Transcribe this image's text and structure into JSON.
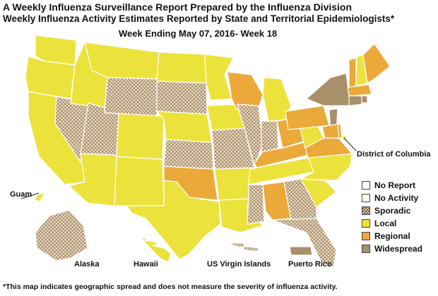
{
  "titles": {
    "line1": "A Weekly Influenza Surveillance Report Prepared by the Influenza Division",
    "line2": "Weekly Influenza Activity Estimates Reported by State and Territorial Epidemiologists*",
    "week": "Week Ending May 07, 2016- Week 18"
  },
  "labels": {
    "dc": "District of Columbia",
    "guam": "Guam",
    "alaska": "Alaska",
    "hawaii": "Hawaii",
    "usvi": "US Virgin Islands",
    "pr": "Puerto Rico"
  },
  "legend": [
    {
      "level": "no_report",
      "label": "No Report"
    },
    {
      "level": "no_activity",
      "label": "No Activity"
    },
    {
      "level": "sporadic",
      "label": "Sporadic"
    },
    {
      "level": "local",
      "label": "Local"
    },
    {
      "level": "regional",
      "label": "Regional"
    },
    {
      "level": "widespread",
      "label": "Widespread"
    }
  ],
  "colors": {
    "no_report": "#ffffff",
    "no_activity": "#fdfde8",
    "sporadic": "#ecdcc0",
    "local": "#ece23c",
    "regional": "#eba93a",
    "widespread": "#a8906a",
    "border": "#ffffff"
  },
  "activity": {
    "widespread": [
      "NY",
      "NJ",
      "CT",
      "RI",
      "PR"
    ],
    "regional": [
      "ME",
      "VT",
      "WI",
      "OH",
      "PA",
      "KY",
      "VA",
      "OK",
      "AL",
      "MA",
      "MD",
      "DE"
    ],
    "sporadic": [
      "NV",
      "UT",
      "WY",
      "SD",
      "KS",
      "MO",
      "IL",
      "IN",
      "MS",
      "GA",
      "FL",
      "AK",
      "USVI"
    ],
    "local": [
      "WA",
      "OR",
      "CA",
      "ID",
      "MT",
      "ND",
      "MN",
      "IA",
      "NE",
      "CO",
      "AZ",
      "NM",
      "TX",
      "AR",
      "LA",
      "TN",
      "NC",
      "SC",
      "MI",
      "WV",
      "NH",
      "HI",
      "GU",
      "DC"
    ],
    "no_activity": [],
    "no_report": []
  },
  "footnote": "*This map indicates geographic spread and does not measure the severity of influenza activity."
}
